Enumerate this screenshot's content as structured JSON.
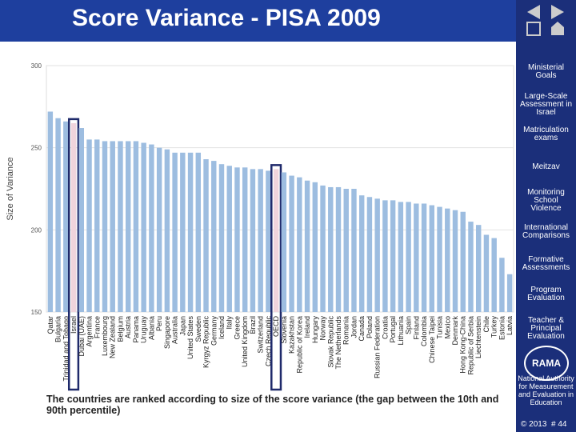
{
  "header": {
    "title": "Score Variance - PISA 2009"
  },
  "chart_data": {
    "type": "bar",
    "ylabel": "Size of Variance",
    "categories": [
      "Qatar",
      "Bulgaria",
      "Trinidad and Tobago",
      "Israel",
      "Dubai (UAE)",
      "Argentina",
      "France",
      "Luxembourg",
      "New Zealand",
      "Belgium",
      "Austria",
      "Panama",
      "Uruguay",
      "Albania",
      "Peru",
      "Singapore",
      "Australia",
      "Japan",
      "United States",
      "Sweden",
      "Kyrgyz Republic",
      "Germany",
      "Iceland",
      "Italy",
      "Greece",
      "United Kingdom",
      "Brazil",
      "Switzerland",
      "Czech Republic",
      "OECD",
      "Slovenia",
      "Kazakhstan",
      "Republic of Korea",
      "Ireland",
      "Hungary",
      "Norway",
      "Slovak Republic",
      "The Netherlands",
      "Romania",
      "Jordan",
      "Canada",
      "Poland",
      "Russian Federation",
      "Croatia",
      "Portugal",
      "Lithuania",
      "Spain",
      "Finland",
      "Colombia",
      "Chinese Taipei",
      "Tunisia",
      "Mexico",
      "Denmark",
      "Hong Kong-China",
      "Republic of Serbia",
      "Liechtenstein",
      "Chile",
      "Turkey",
      "Estonia",
      "Latvia"
    ],
    "values": [
      272,
      268,
      266,
      265,
      262,
      255,
      255,
      254,
      254,
      254,
      254,
      254,
      253,
      252,
      250,
      249,
      247,
      247,
      247,
      247,
      243,
      242,
      240,
      239,
      238,
      238,
      237,
      237,
      236,
      237,
      235,
      233,
      232,
      230,
      229,
      227,
      226,
      226,
      225,
      225,
      221,
      220,
      219,
      218,
      218,
      217,
      217,
      216,
      216,
      215,
      214,
      213,
      212,
      211,
      205,
      203,
      197,
      195,
      183,
      173
    ],
    "color": "#9dbde0",
    "highlight": [
      "Israel",
      "OECD"
    ],
    "highlight_color": "#1f2a6b",
    "ylim": [
      150,
      300
    ],
    "yticks": [
      150,
      200,
      250,
      300
    ],
    "grid": true
  },
  "sidebar": {
    "items": [
      "Ministerial Goals",
      "Large-Scale Assessment in Israel",
      "Matriculation exams",
      "Meitzav",
      "Monitoring School Violence",
      "International Comparisons",
      "Formative Assessments",
      "Program Evaluation",
      "Teacher & Principal Evaluation"
    ],
    "logo": "RAMA",
    "org": "National Authority for Measurement and Evaluation in Education"
  },
  "caption": "The countries are ranked according to size of the score variance (the gap between the 10th and 90th percentile)",
  "footer": {
    "copyright": "© 2013",
    "page": "# 44"
  }
}
